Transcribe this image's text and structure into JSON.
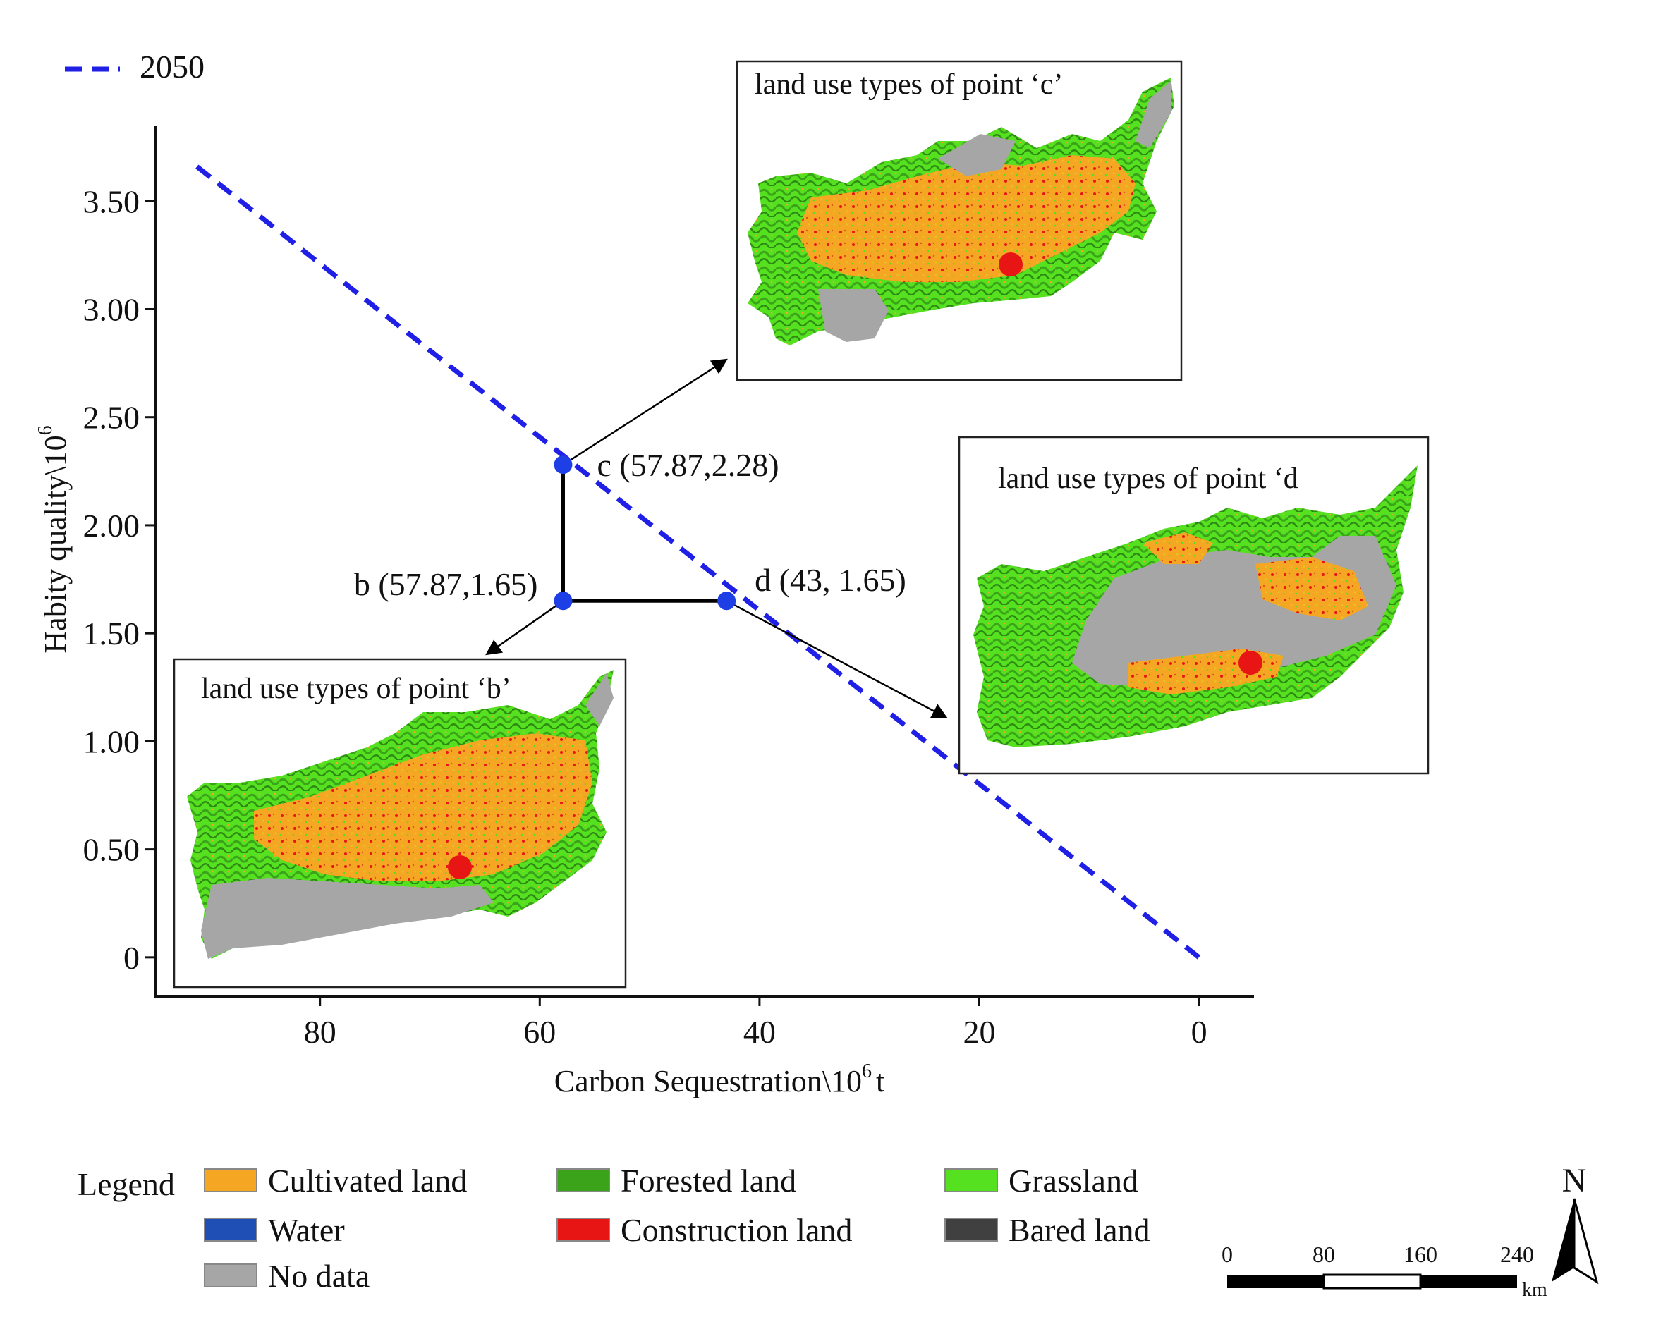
{
  "chart_data": {
    "type": "line",
    "title": "",
    "xlabel": "Carbon Sequestration\\10",
    "xlabel_sup": "6",
    "xlabel_suffix": "t",
    "ylabel": "Habity quality\\10",
    "ylabel_sup": "6",
    "xlim": [
      95,
      -5
    ],
    "ylim": [
      -0.18,
      3.85
    ],
    "x_ticks": [
      80,
      60,
      40,
      20,
      0
    ],
    "y_ticks": [
      0,
      0.5,
      1.0,
      1.5,
      2.0,
      2.5,
      3.0,
      3.5
    ],
    "x_tick_labels": [
      "80",
      "60",
      "40",
      "20",
      "0"
    ],
    "y_tick_labels": [
      "0",
      "0.50",
      "1.00",
      "1.50",
      "2.00",
      "2.50",
      "3.00",
      "3.50"
    ],
    "grid": false,
    "legend_position": "top-left",
    "series": [
      {
        "name": "2050",
        "style": "dashed",
        "color": "#1f1fe6",
        "x": [
          91.2,
          0
        ],
        "y": [
          3.66,
          0
        ]
      }
    ],
    "points": [
      {
        "id": "b",
        "x": 57.87,
        "y": 1.65,
        "label": "b (57.87,1.65)"
      },
      {
        "id": "c",
        "x": 57.87,
        "y": 2.28,
        "label": "c (57.87,2.28)"
      },
      {
        "id": "d",
        "x": 43,
        "y": 1.65,
        "label": "d (43, 1.65)"
      }
    ],
    "connectors": [
      {
        "from": "b",
        "to": "c"
      },
      {
        "from": "b",
        "to": "d"
      }
    ],
    "point_color": "#1f3fe6"
  },
  "insets": {
    "c": {
      "title": "land use types of point ‘c’"
    },
    "d": {
      "title": "land use types of point ‘d"
    },
    "b": {
      "title": "land use types of point ‘b’"
    }
  },
  "map_legend": {
    "title": "Legend",
    "items": [
      {
        "label": "Cultivated land",
        "color": "#f5a623"
      },
      {
        "label": "Forested land",
        "color": "#3aa31a"
      },
      {
        "label": "Grassland",
        "color": "#55e020"
      },
      {
        "label": "Water",
        "color": "#1f4fb5"
      },
      {
        "label": "Construction land",
        "color": "#e81515"
      },
      {
        "label": "Bared land",
        "color": "#404040"
      },
      {
        "label": "No data",
        "color": "#a6a6a6"
      }
    ]
  },
  "scale_bar": {
    "ticks": [
      "0",
      "80",
      "160",
      "240"
    ],
    "unit": "km"
  },
  "north_arrow": {
    "label": "N"
  }
}
